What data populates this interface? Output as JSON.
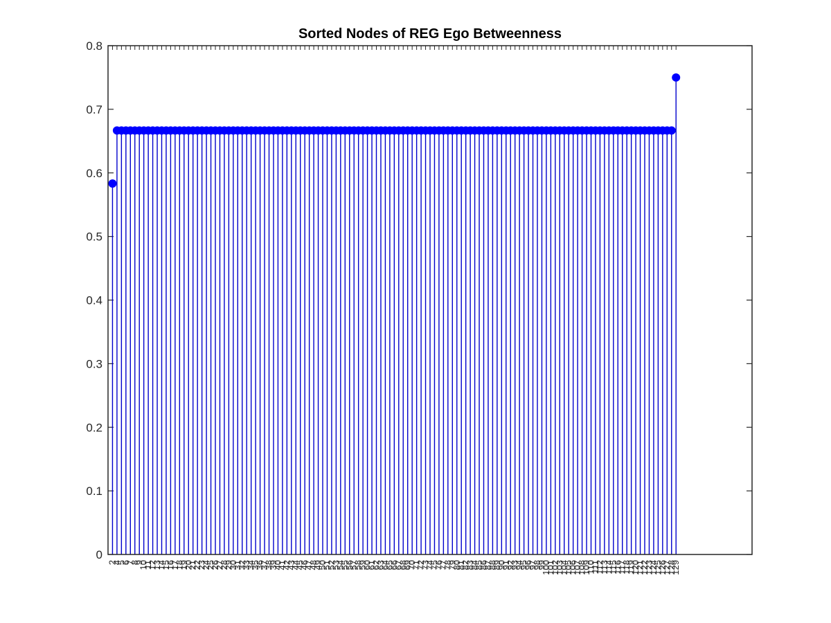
{
  "chart_data": {
    "type": "stem",
    "title": "Sorted Nodes of REG Ego Betweenness",
    "xlabel": "",
    "ylabel": "",
    "ylim": [
      0,
      0.8
    ],
    "xlim": [
      0,
      144
    ],
    "yticks": [
      "0",
      "0.1",
      "0.2",
      "0.3",
      "0.4",
      "0.5",
      "0.6",
      "0.7",
      "0.8"
    ],
    "grid": false,
    "marker_color": "#0000ff",
    "stem_color": "#0000cc",
    "series": [
      {
        "points": [
          {
            "label": "2",
            "value": 0.5833
          },
          {
            "label": "4",
            "value": 0.6667
          },
          {
            "label": "5",
            "value": 0.6667
          },
          {
            "label": "6",
            "value": 0.6667
          },
          {
            "label": "7",
            "value": 0.6667
          },
          {
            "label": "8",
            "value": 0.6667
          },
          {
            "label": "9",
            "value": 0.6667
          },
          {
            "label": "10",
            "value": 0.6667
          },
          {
            "label": "11",
            "value": 0.6667
          },
          {
            "label": "12",
            "value": 0.6667
          },
          {
            "label": "13",
            "value": 0.6667
          },
          {
            "label": "14",
            "value": 0.6667
          },
          {
            "label": "15",
            "value": 0.6667
          },
          {
            "label": "16",
            "value": 0.6667
          },
          {
            "label": "17",
            "value": 0.6667
          },
          {
            "label": "18",
            "value": 0.6667
          },
          {
            "label": "19",
            "value": 0.6667
          },
          {
            "label": "20",
            "value": 0.6667
          },
          {
            "label": "21",
            "value": 0.6667
          },
          {
            "label": "22",
            "value": 0.6667
          },
          {
            "label": "23",
            "value": 0.6667
          },
          {
            "label": "24",
            "value": 0.6667
          },
          {
            "label": "25",
            "value": 0.6667
          },
          {
            "label": "26",
            "value": 0.6667
          },
          {
            "label": "27",
            "value": 0.6667
          },
          {
            "label": "28",
            "value": 0.6667
          },
          {
            "label": "29",
            "value": 0.6667
          },
          {
            "label": "30",
            "value": 0.6667
          },
          {
            "label": "31",
            "value": 0.6667
          },
          {
            "label": "32",
            "value": 0.6667
          },
          {
            "label": "33",
            "value": 0.6667
          },
          {
            "label": "34",
            "value": 0.6667
          },
          {
            "label": "35",
            "value": 0.6667
          },
          {
            "label": "36",
            "value": 0.6667
          },
          {
            "label": "37",
            "value": 0.6667
          },
          {
            "label": "38",
            "value": 0.6667
          },
          {
            "label": "39",
            "value": 0.6667
          },
          {
            "label": "40",
            "value": 0.6667
          },
          {
            "label": "41",
            "value": 0.6667
          },
          {
            "label": "42",
            "value": 0.6667
          },
          {
            "label": "43",
            "value": 0.6667
          },
          {
            "label": "44",
            "value": 0.6667
          },
          {
            "label": "45",
            "value": 0.6667
          },
          {
            "label": "46",
            "value": 0.6667
          },
          {
            "label": "47",
            "value": 0.6667
          },
          {
            "label": "48",
            "value": 0.6667
          },
          {
            "label": "49",
            "value": 0.6667
          },
          {
            "label": "50",
            "value": 0.6667
          },
          {
            "label": "51",
            "value": 0.6667
          },
          {
            "label": "52",
            "value": 0.6667
          },
          {
            "label": "53",
            "value": 0.6667
          },
          {
            "label": "54",
            "value": 0.6667
          },
          {
            "label": "55",
            "value": 0.6667
          },
          {
            "label": "56",
            "value": 0.6667
          },
          {
            "label": "57",
            "value": 0.6667
          },
          {
            "label": "58",
            "value": 0.6667
          },
          {
            "label": "59",
            "value": 0.6667
          },
          {
            "label": "60",
            "value": 0.6667
          },
          {
            "label": "61",
            "value": 0.6667
          },
          {
            "label": "62",
            "value": 0.6667
          },
          {
            "label": "63",
            "value": 0.6667
          },
          {
            "label": "64",
            "value": 0.6667
          },
          {
            "label": "65",
            "value": 0.6667
          },
          {
            "label": "66",
            "value": 0.6667
          },
          {
            "label": "67",
            "value": 0.6667
          },
          {
            "label": "68",
            "value": 0.6667
          },
          {
            "label": "69",
            "value": 0.6667
          },
          {
            "label": "70",
            "value": 0.6667
          },
          {
            "label": "71",
            "value": 0.6667
          },
          {
            "label": "72",
            "value": 0.6667
          },
          {
            "label": "73",
            "value": 0.6667
          },
          {
            "label": "74",
            "value": 0.6667
          },
          {
            "label": "75",
            "value": 0.6667
          },
          {
            "label": "76",
            "value": 0.6667
          },
          {
            "label": "77",
            "value": 0.6667
          },
          {
            "label": "78",
            "value": 0.6667
          },
          {
            "label": "79",
            "value": 0.6667
          },
          {
            "label": "80",
            "value": 0.6667
          },
          {
            "label": "81",
            "value": 0.6667
          },
          {
            "label": "82",
            "value": 0.6667
          },
          {
            "label": "83",
            "value": 0.6667
          },
          {
            "label": "84",
            "value": 0.6667
          },
          {
            "label": "85",
            "value": 0.6667
          },
          {
            "label": "86",
            "value": 0.6667
          },
          {
            "label": "87",
            "value": 0.6667
          },
          {
            "label": "88",
            "value": 0.6667
          },
          {
            "label": "89",
            "value": 0.6667
          },
          {
            "label": "90",
            "value": 0.6667
          },
          {
            "label": "91",
            "value": 0.6667
          },
          {
            "label": "92",
            "value": 0.6667
          },
          {
            "label": "93",
            "value": 0.6667
          },
          {
            "label": "94",
            "value": 0.6667
          },
          {
            "label": "95",
            "value": 0.6667
          },
          {
            "label": "96",
            "value": 0.6667
          },
          {
            "label": "97",
            "value": 0.6667
          },
          {
            "label": "98",
            "value": 0.6667
          },
          {
            "label": "99",
            "value": 0.6667
          },
          {
            "label": "100",
            "value": 0.6667
          },
          {
            "label": "101",
            "value": 0.6667
          },
          {
            "label": "102",
            "value": 0.6667
          },
          {
            "label": "103",
            "value": 0.6667
          },
          {
            "label": "104",
            "value": 0.6667
          },
          {
            "label": "105",
            "value": 0.6667
          },
          {
            "label": "106",
            "value": 0.6667
          },
          {
            "label": "107",
            "value": 0.6667
          },
          {
            "label": "108",
            "value": 0.6667
          },
          {
            "label": "109",
            "value": 0.6667
          },
          {
            "label": "110",
            "value": 0.6667
          },
          {
            "label": "111",
            "value": 0.6667
          },
          {
            "label": "112",
            "value": 0.6667
          },
          {
            "label": "113",
            "value": 0.6667
          },
          {
            "label": "114",
            "value": 0.6667
          },
          {
            "label": "115",
            "value": 0.6667
          },
          {
            "label": "116",
            "value": 0.6667
          },
          {
            "label": "117",
            "value": 0.6667
          },
          {
            "label": "118",
            "value": 0.6667
          },
          {
            "label": "119",
            "value": 0.6667
          },
          {
            "label": "120",
            "value": 0.6667
          },
          {
            "label": "121",
            "value": 0.6667
          },
          {
            "label": "122",
            "value": 0.6667
          },
          {
            "label": "123",
            "value": 0.6667
          },
          {
            "label": "124",
            "value": 0.6667
          },
          {
            "label": "125",
            "value": 0.6667
          },
          {
            "label": "126",
            "value": 0.6667
          },
          {
            "label": "127",
            "value": 0.6667
          },
          {
            "label": "128",
            "value": 0.6667
          },
          {
            "label": "129",
            "value": 0.75
          }
        ]
      }
    ]
  }
}
